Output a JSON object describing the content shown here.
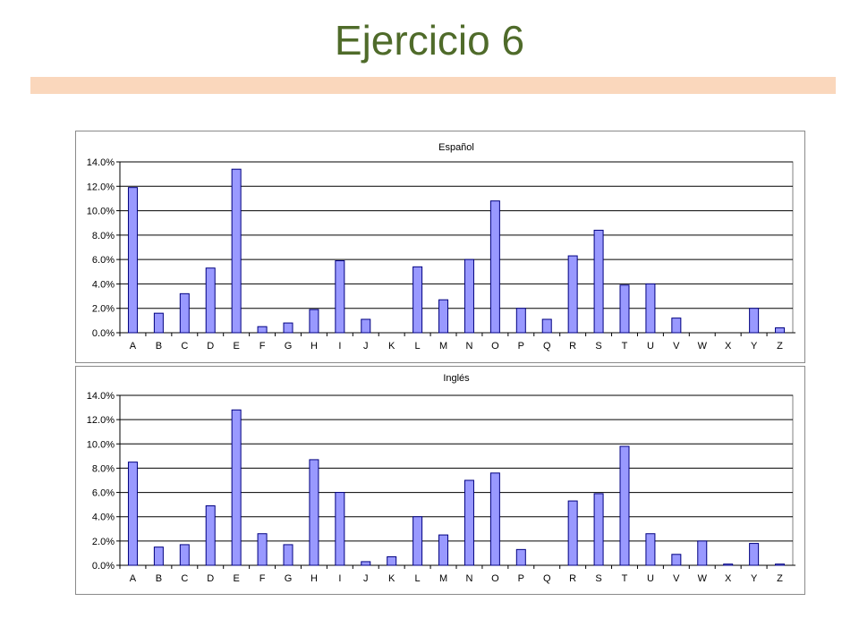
{
  "slide": {
    "title": "Ejercicio 6"
  },
  "colors": {
    "title": "#4f6b2a",
    "accent_bar": "#fad7bc",
    "bar_fill": "#9999ff",
    "bar_stroke": "#000080"
  },
  "chart_data": [
    {
      "type": "bar",
      "title": "Español",
      "categories": [
        "A",
        "B",
        "C",
        "D",
        "E",
        "F",
        "G",
        "H",
        "I",
        "J",
        "K",
        "L",
        "M",
        "N",
        "O",
        "P",
        "Q",
        "R",
        "S",
        "T",
        "U",
        "V",
        "W",
        "X",
        "Y",
        "Z"
      ],
      "values": [
        11.9,
        1.6,
        3.2,
        5.3,
        13.4,
        0.5,
        0.8,
        1.9,
        5.9,
        1.1,
        0.0,
        5.4,
        2.7,
        6.0,
        10.8,
        2.0,
        1.1,
        6.3,
        8.4,
        3.9,
        4.0,
        1.2,
        0.0,
        0.0,
        2.0,
        0.4
      ],
      "yticks": [
        "0.0%",
        "2.0%",
        "4.0%",
        "6.0%",
        "8.0%",
        "10.0%",
        "12.0%",
        "14.0%"
      ],
      "ylim": [
        0,
        14
      ],
      "grid": true,
      "legend": false
    },
    {
      "type": "bar",
      "title": "Inglés",
      "categories": [
        "A",
        "B",
        "C",
        "D",
        "E",
        "F",
        "G",
        "H",
        "I",
        "J",
        "K",
        "L",
        "M",
        "N",
        "O",
        "P",
        "Q",
        "R",
        "S",
        "T",
        "U",
        "V",
        "W",
        "X",
        "Y",
        "Z"
      ],
      "values": [
        8.5,
        1.5,
        1.7,
        4.9,
        12.8,
        2.6,
        1.7,
        8.7,
        6.0,
        0.3,
        0.7,
        4.0,
        2.5,
        7.0,
        7.6,
        1.3,
        0.0,
        5.3,
        5.9,
        9.8,
        2.6,
        0.9,
        2.0,
        0.1,
        1.8,
        0.1
      ],
      "yticks": [
        "0.0%",
        "2.0%",
        "4.0%",
        "6.0%",
        "8.0%",
        "10.0%",
        "12.0%",
        "14.0%"
      ],
      "ylim": [
        0,
        14
      ],
      "grid": true,
      "legend": false
    }
  ]
}
